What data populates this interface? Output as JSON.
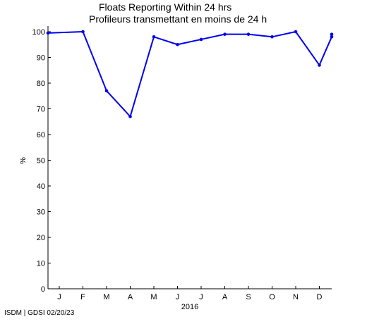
{
  "header": {
    "title_en": "Floats Reporting Within 24 hrs",
    "title_fr": "Profileurs transmettant en moins de 24 h"
  },
  "footer": {
    "credit": "ISDM | GDSI 02/20/23"
  },
  "chart_data": {
    "type": "line",
    "title": "Floats Reporting Within 24 hrs",
    "subtitle": "Profileurs transmettant en moins de 24 h",
    "xlabel": "2016",
    "ylabel": "%",
    "categories": [
      "J",
      "F",
      "M",
      "A",
      "M",
      "J",
      "J",
      "A",
      "S",
      "O",
      "N",
      "D"
    ],
    "ylim": [
      0,
      100
    ],
    "yticks": [
      0,
      10,
      20,
      30,
      40,
      50,
      60,
      70,
      80,
      90,
      100
    ],
    "grid": false,
    "series": [
      {
        "color": "#0000ee",
        "points": [
          {
            "x": 0.0,
            "y": 99.5
          },
          {
            "x": 1.0,
            "y": 100
          },
          {
            "x": 2.0,
            "y": 77
          },
          {
            "x": 3.0,
            "y": 67
          },
          {
            "x": 4.0,
            "y": 98
          },
          {
            "x": 5.0,
            "y": 95
          },
          {
            "x": 6.0,
            "y": 97
          },
          {
            "x": 7.0,
            "y": 99
          },
          {
            "x": 8.0,
            "y": 99
          },
          {
            "x": 9.0,
            "y": 98
          },
          {
            "x": 10.0,
            "y": 100
          },
          {
            "x": 11.0,
            "y": 87
          },
          {
            "x": 12.0,
            "y": 98
          },
          {
            "x": 12.4,
            "y": 99
          }
        ]
      }
    ]
  }
}
